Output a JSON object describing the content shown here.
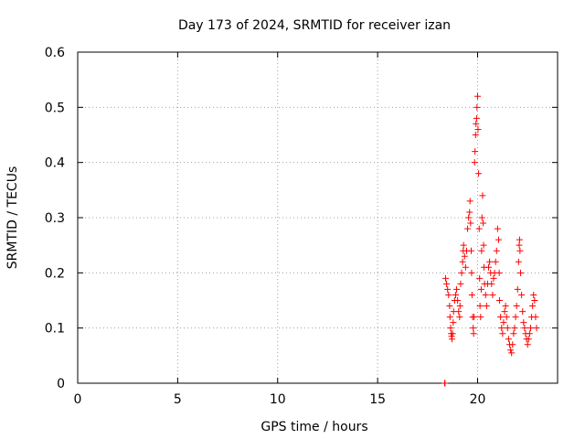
{
  "chart_data": {
    "type": "scatter",
    "title": "Day 173 of 2024, SRMTID for receiver izan",
    "xlabel": "GPS time / hours",
    "ylabel": "SRMTID / TECUs",
    "xlim": [
      0,
      24
    ],
    "ylim": [
      0,
      0.6
    ],
    "xticks": [
      0,
      5,
      10,
      15,
      20
    ],
    "yticks": [
      0,
      0.1,
      0.2,
      0.3,
      0.4,
      0.5,
      0.6
    ],
    "xtick_labels": [
      "0",
      "5",
      "10",
      "15",
      "20"
    ],
    "ytick_labels": [
      "0",
      "0.1",
      "0.2",
      "0.3",
      "0.4",
      "0.5",
      "0.6"
    ],
    "grid": true,
    "marker": "+",
    "color": "#ff0000",
    "series": [
      {
        "name": "SRMTID",
        "points": [
          [
            18.35,
            0.0
          ],
          [
            18.37,
            0.0
          ],
          [
            18.4,
            0.19
          ],
          [
            18.45,
            0.18
          ],
          [
            18.5,
            0.17
          ],
          [
            18.55,
            0.16
          ],
          [
            18.6,
            0.14
          ],
          [
            18.62,
            0.12
          ],
          [
            18.65,
            0.1
          ],
          [
            18.68,
            0.09
          ],
          [
            18.7,
            0.085
          ],
          [
            18.72,
            0.08
          ],
          [
            18.75,
            0.09
          ],
          [
            18.78,
            0.11
          ],
          [
            18.8,
            0.13
          ],
          [
            18.85,
            0.15
          ],
          [
            18.9,
            0.16
          ],
          [
            18.95,
            0.17
          ],
          [
            19.0,
            0.15
          ],
          [
            19.05,
            0.13
          ],
          [
            19.1,
            0.12
          ],
          [
            19.12,
            0.14
          ],
          [
            19.15,
            0.18
          ],
          [
            19.2,
            0.2
          ],
          [
            19.25,
            0.22
          ],
          [
            19.28,
            0.24
          ],
          [
            19.3,
            0.25
          ],
          [
            19.35,
            0.23
          ],
          [
            19.4,
            0.21
          ],
          [
            19.45,
            0.24
          ],
          [
            19.5,
            0.28
          ],
          [
            19.55,
            0.3
          ],
          [
            19.6,
            0.31
          ],
          [
            19.62,
            0.33
          ],
          [
            19.65,
            0.29
          ],
          [
            19.68,
            0.24
          ],
          [
            19.7,
            0.2
          ],
          [
            19.72,
            0.16
          ],
          [
            19.75,
            0.12
          ],
          [
            19.78,
            0.1
          ],
          [
            19.8,
            0.09
          ],
          [
            19.82,
            0.12
          ],
          [
            19.85,
            0.4
          ],
          [
            19.87,
            0.42
          ],
          [
            19.9,
            0.45
          ],
          [
            19.92,
            0.47
          ],
          [
            19.95,
            0.48
          ],
          [
            19.97,
            0.5
          ],
          [
            20.0,
            0.52
          ],
          [
            20.02,
            0.46
          ],
          [
            20.05,
            0.38
          ],
          [
            20.08,
            0.28
          ],
          [
            20.1,
            0.19
          ],
          [
            20.12,
            0.14
          ],
          [
            20.15,
            0.12
          ],
          [
            20.18,
            0.17
          ],
          [
            20.2,
            0.24
          ],
          [
            20.22,
            0.3
          ],
          [
            20.25,
            0.34
          ],
          [
            20.28,
            0.29
          ],
          [
            20.3,
            0.25
          ],
          [
            20.32,
            0.21
          ],
          [
            20.35,
            0.18
          ],
          [
            20.4,
            0.16
          ],
          [
            20.45,
            0.14
          ],
          [
            20.5,
            0.18
          ],
          [
            20.55,
            0.21
          ],
          [
            20.6,
            0.22
          ],
          [
            20.65,
            0.2
          ],
          [
            20.7,
            0.18
          ],
          [
            20.75,
            0.16
          ],
          [
            20.8,
            0.19
          ],
          [
            20.85,
            0.2
          ],
          [
            20.9,
            0.22
          ],
          [
            20.95,
            0.24
          ],
          [
            21.0,
            0.28
          ],
          [
            21.05,
            0.26
          ],
          [
            21.08,
            0.2
          ],
          [
            21.1,
            0.15
          ],
          [
            21.15,
            0.12
          ],
          [
            21.2,
            0.1
          ],
          [
            21.25,
            0.09
          ],
          [
            21.3,
            0.11
          ],
          [
            21.35,
            0.13
          ],
          [
            21.4,
            0.14
          ],
          [
            21.45,
            0.12
          ],
          [
            21.5,
            0.1
          ],
          [
            21.55,
            0.08
          ],
          [
            21.6,
            0.07
          ],
          [
            21.65,
            0.06
          ],
          [
            21.7,
            0.055
          ],
          [
            21.75,
            0.07
          ],
          [
            21.8,
            0.09
          ],
          [
            21.85,
            0.1
          ],
          [
            21.9,
            0.12
          ],
          [
            21.95,
            0.14
          ],
          [
            22.0,
            0.17
          ],
          [
            22.05,
            0.22
          ],
          [
            22.08,
            0.25
          ],
          [
            22.1,
            0.26
          ],
          [
            22.12,
            0.24
          ],
          [
            22.15,
            0.2
          ],
          [
            22.2,
            0.16
          ],
          [
            22.25,
            0.13
          ],
          [
            22.3,
            0.11
          ],
          [
            22.35,
            0.1
          ],
          [
            22.4,
            0.09
          ],
          [
            22.45,
            0.08
          ],
          [
            22.5,
            0.07
          ],
          [
            22.55,
            0.08
          ],
          [
            22.6,
            0.09
          ],
          [
            22.65,
            0.1
          ],
          [
            22.7,
            0.12
          ],
          [
            22.75,
            0.14
          ],
          [
            22.8,
            0.16
          ],
          [
            22.85,
            0.15
          ],
          [
            22.9,
            0.12
          ],
          [
            22.95,
            0.1
          ]
        ]
      }
    ]
  }
}
